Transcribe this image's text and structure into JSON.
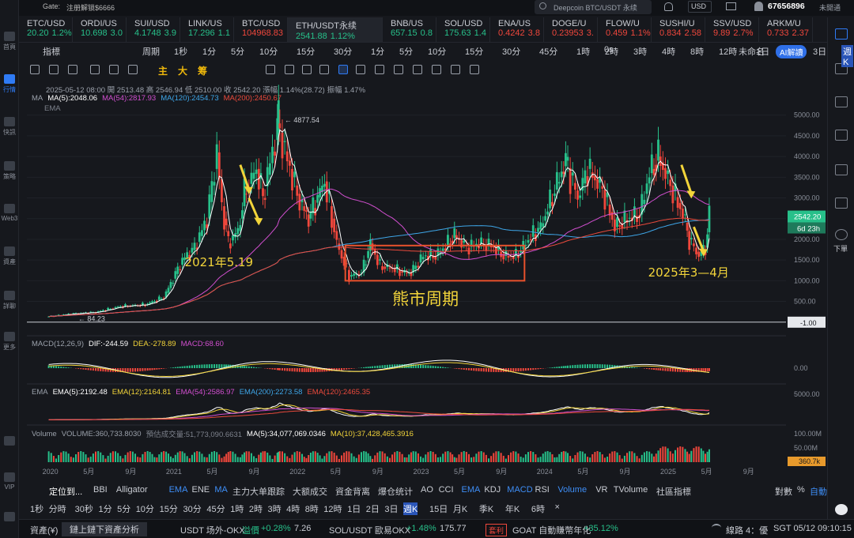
{
  "topbar": {
    "gate_label": "Gate:",
    "gate_promo": "注册解锁$6666",
    "search_placeholder": "Deepcoin BTC/USDT 永续",
    "currency": "USD",
    "user_id": "67656896",
    "user_status": "未開通"
  },
  "left_nav": [
    {
      "label": "首頁"
    },
    {
      "label": "行情"
    },
    {
      "label": "快訊"
    },
    {
      "label": "策略"
    },
    {
      "label": "Web3"
    },
    {
      "label": "資產"
    },
    {
      "label": "詳聊"
    },
    {
      "label": "更多"
    },
    {
      "label": ""
    },
    {
      "label": "VIP"
    },
    {
      "label": ""
    }
  ],
  "tickers": [
    {
      "name": "ETC/USD",
      "price": "20.20",
      "change": "1.2%",
      "dir": "up"
    },
    {
      "name": "ORDI/US",
      "price": "10.698",
      "change": "3.0",
      "dir": "up"
    },
    {
      "name": "SUI/USD",
      "price": "4.1748",
      "change": "3.9",
      "dir": "up"
    },
    {
      "name": "LINK/US",
      "price": "17.296",
      "change": "1.1",
      "dir": "up"
    },
    {
      "name": "BTC/USD",
      "price": "104968.83",
      "change": "",
      "dir": "dn"
    },
    {
      "name": "ETH/USDT永续",
      "price": "2541.88",
      "change": "1.12%",
      "dir": "up"
    },
    {
      "name": "BNB/US",
      "price": "657.15",
      "change": "0.8",
      "dir": "up"
    },
    {
      "name": "SOL/USD",
      "price": "175.63",
      "change": "1.4",
      "dir": "up"
    },
    {
      "name": "ENA/US",
      "price": "0.4242",
      "change": "3.8",
      "dir": "dn"
    },
    {
      "name": "DOGE/U",
      "price": "0.23953",
      "change": "3.",
      "dir": "dn"
    },
    {
      "name": "FLOW/U",
      "price": "0.459",
      "change": "1.1%",
      "dir": "dn"
    },
    {
      "name": "SUSHI/U",
      "price": "0.834",
      "change": "2.58",
      "dir": "dn"
    },
    {
      "name": "SSV/USD",
      "price": "9.89",
      "change": "2.7%",
      "dir": "dn"
    },
    {
      "name": "ARKM/U",
      "price": "0.733",
      "change": "2.37",
      "dir": "dn"
    }
  ],
  "interval_bar": {
    "indicators": "指標",
    "period": "周期",
    "intervals": [
      "1秒",
      "1分",
      "5分",
      "10分",
      "15分",
      "30分",
      "1分",
      "5分",
      "10分",
      "15分",
      "30分",
      "45分",
      "1時",
      "2時",
      "3時",
      "4時",
      "8時",
      "12時",
      "1日",
      "2日",
      "3日",
      "週K"
    ],
    "selected": "週K",
    "countdown": "0s",
    "layout_name": "未命名",
    "ai": "AI解讀"
  },
  "drawing_bar": {
    "chars": [
      "主",
      "大",
      "筹"
    ]
  },
  "legend": {
    "ohlc": "2025-05-12 08:00  開 2513.48  高 2546.94  低 2510.00  收 2542.20  漲幅 1.14%(28.72)  振幅 1.47%",
    "ma_title": "MA",
    "ma5": "MA(5):2048.06",
    "ma54": "MA(54):2817.93",
    "ma120": "MA(120):2454.73",
    "ma200": "MA(200):2450.67",
    "ema_title": "EMA",
    "macd_title": "MACD(12,26,9)",
    "dif": "DIF:-244.59",
    "dea": "DEA:-278.89",
    "macd": "MACD:68.60",
    "ema2_title": "EMA",
    "ema5": "EMA(5):2192.48",
    "ema12": "EMA(12):2164.81",
    "ema54": "EMA(54):2586.97",
    "ema200": "EMA(200):2273.58",
    "ema120": "EMA(120):2465.35",
    "vol_title": "Volume",
    "volume": "VOLUME:360,733.8030",
    "est_vol": "預估成交量:51,773,090.6631",
    "vma5": "MA(5):34,077,069.0346",
    "vma10": "MA(10):37,428,465.3916"
  },
  "chart_data": [
    {
      "type": "candlestick",
      "title": "ETH/USDT永续 週K",
      "colors": {
        "up": "#27c08a",
        "down": "#f0473c",
        "ma5": "#ffffff",
        "ma54": "#d24fd0",
        "ma120": "#3ea6e8",
        "ma200": "#ec4a3c"
      },
      "x": [
        "2020",
        "5月",
        "9月",
        "2021",
        "5月",
        "9月",
        "2022",
        "5月",
        "9月",
        "2023",
        "5月",
        "9月",
        "2024",
        "5月",
        "9月",
        "2025",
        "5月",
        "9月"
      ],
      "ylim": [
        -100,
        5300
      ],
      "y_ticks": [
        "5000.00",
        "4500.00",
        "4000.00",
        "3500.00",
        "3000.00",
        "2500.00",
        "2000.00",
        "1500.00",
        "1000.00",
        "500.00"
      ],
      "current_price": "2542.20",
      "countdown_tag": "6d 23h",
      "line_price": "-1.00",
      "price_series": [
        [
          2020.0,
          130
        ],
        [
          2020.2,
          200
        ],
        [
          2020.4,
          240
        ],
        [
          2020.6,
          380
        ],
        [
          2020.8,
          420
        ],
        [
          2020.95,
          600
        ],
        [
          2021.1,
          1500
        ],
        [
          2021.2,
          1800
        ],
        [
          2021.3,
          2500
        ],
        [
          2021.38,
          4100
        ],
        [
          2021.42,
          2800
        ],
        [
          2021.47,
          1900
        ],
        [
          2021.55,
          2200
        ],
        [
          2021.6,
          3100
        ],
        [
          2021.7,
          3700
        ],
        [
          2021.75,
          3000
        ],
        [
          2021.85,
          4400
        ],
        [
          2021.87,
          4800
        ],
        [
          2021.95,
          3900
        ],
        [
          2022.05,
          2900
        ],
        [
          2022.12,
          2500
        ],
        [
          2022.25,
          3400
        ],
        [
          2022.35,
          1900
        ],
        [
          2022.45,
          1100
        ],
        [
          2022.55,
          1200
        ],
        [
          2022.62,
          1900
        ],
        [
          2022.7,
          1350
        ],
        [
          2022.8,
          1300
        ],
        [
          2022.88,
          1200
        ],
        [
          2022.95,
          1200
        ],
        [
          2023.05,
          1600
        ],
        [
          2023.15,
          1600
        ],
        [
          2023.25,
          1900
        ],
        [
          2023.3,
          2100
        ],
        [
          2023.4,
          1800
        ],
        [
          2023.5,
          1900
        ],
        [
          2023.6,
          1850
        ],
        [
          2023.7,
          1600
        ],
        [
          2023.8,
          1600
        ],
        [
          2023.9,
          2000
        ],
        [
          2024.0,
          2300
        ],
        [
          2024.15,
          3500
        ],
        [
          2024.2,
          3900
        ],
        [
          2024.3,
          3000
        ],
        [
          2024.38,
          3700
        ],
        [
          2024.5,
          3200
        ],
        [
          2024.6,
          2300
        ],
        [
          2024.7,
          2500
        ],
        [
          2024.8,
          2600
        ],
        [
          2024.88,
          3600
        ],
        [
          2024.95,
          4000
        ],
        [
          2025.05,
          3300
        ],
        [
          2025.15,
          2600
        ],
        [
          2025.2,
          2000
        ],
        [
          2025.28,
          1600
        ],
        [
          2025.33,
          1800
        ],
        [
          2025.36,
          2542
        ]
      ],
      "annotations": [
        "2021年5.19",
        "熊市周期",
        "2025年3—4月"
      ],
      "high_label": "4877.54",
      "low_label": "84.23"
    },
    {
      "type": "bar",
      "title": "MACD(12,26,9)",
      "series": [
        {
          "name": "DIF",
          "value": -244.59
        },
        {
          "name": "DEA",
          "value": -278.89
        },
        {
          "name": "MACD",
          "value": 68.6
        }
      ],
      "y_ticks": [
        "0.00"
      ]
    },
    {
      "type": "line",
      "title": "EMA",
      "series": [
        {
          "name": "EMA(5)",
          "value": 2192.48
        },
        {
          "name": "EMA(12)",
          "value": 2164.81
        },
        {
          "name": "EMA(54)",
          "value": 2586.97
        },
        {
          "name": "EMA(200)",
          "value": 2273.58
        },
        {
          "name": "EMA(120)",
          "value": 2465.35
        }
      ],
      "y_ticks": [
        "5000.00"
      ]
    },
    {
      "type": "bar",
      "title": "Volume",
      "series": [
        {
          "name": "VOLUME",
          "value": 360733.803
        }
      ],
      "y_ticks": [
        "100.00M",
        "50.00M"
      ],
      "current_tag": "360.7k"
    }
  ],
  "footer": {
    "label": "定位到...",
    "indicators": [
      "BBI",
      "Alligator",
      "EMA",
      "ENE",
      "MA",
      "主力大单跟踪",
      "大额成交",
      "資金背离",
      "爆仓统计",
      "AO",
      "CCI",
      "EMA",
      "KDJ",
      "MACD",
      "RSI",
      "Volume",
      "VR",
      "TVolume",
      "社區指標"
    ],
    "right": [
      "對數",
      "%",
      "自動"
    ],
    "intervals": [
      "1秒",
      "分時",
      "30秒",
      "1分",
      "5分",
      "10分",
      "15分",
      "30分",
      "45分",
      "1時",
      "2時",
      "3時",
      "4時",
      "8時",
      "12時",
      "1日",
      "2日",
      "3日",
      "週K",
      "15日",
      "月K",
      "季K",
      "年K",
      "6時"
    ],
    "selected": "週K"
  },
  "status": {
    "asset_label": "資產(¥)",
    "asset_btn": "鏈上鏈下資產分析",
    "t1_name": "USDT 场外-OKX",
    "t1_tag": "溢價",
    "t1_change": "+0.28%",
    "t1_price": "7.26",
    "t2_name": "SOL/USDT 歐易OKX",
    "t2_change": "+1.48%",
    "t2_price": "175.77",
    "t3_tag": "套利",
    "t3_name": "GOAT 自動賺幣年化",
    "t3_change": "+35.12%",
    "line": "線路 4：優",
    "time": "SGT 05/12 09:10:15"
  }
}
